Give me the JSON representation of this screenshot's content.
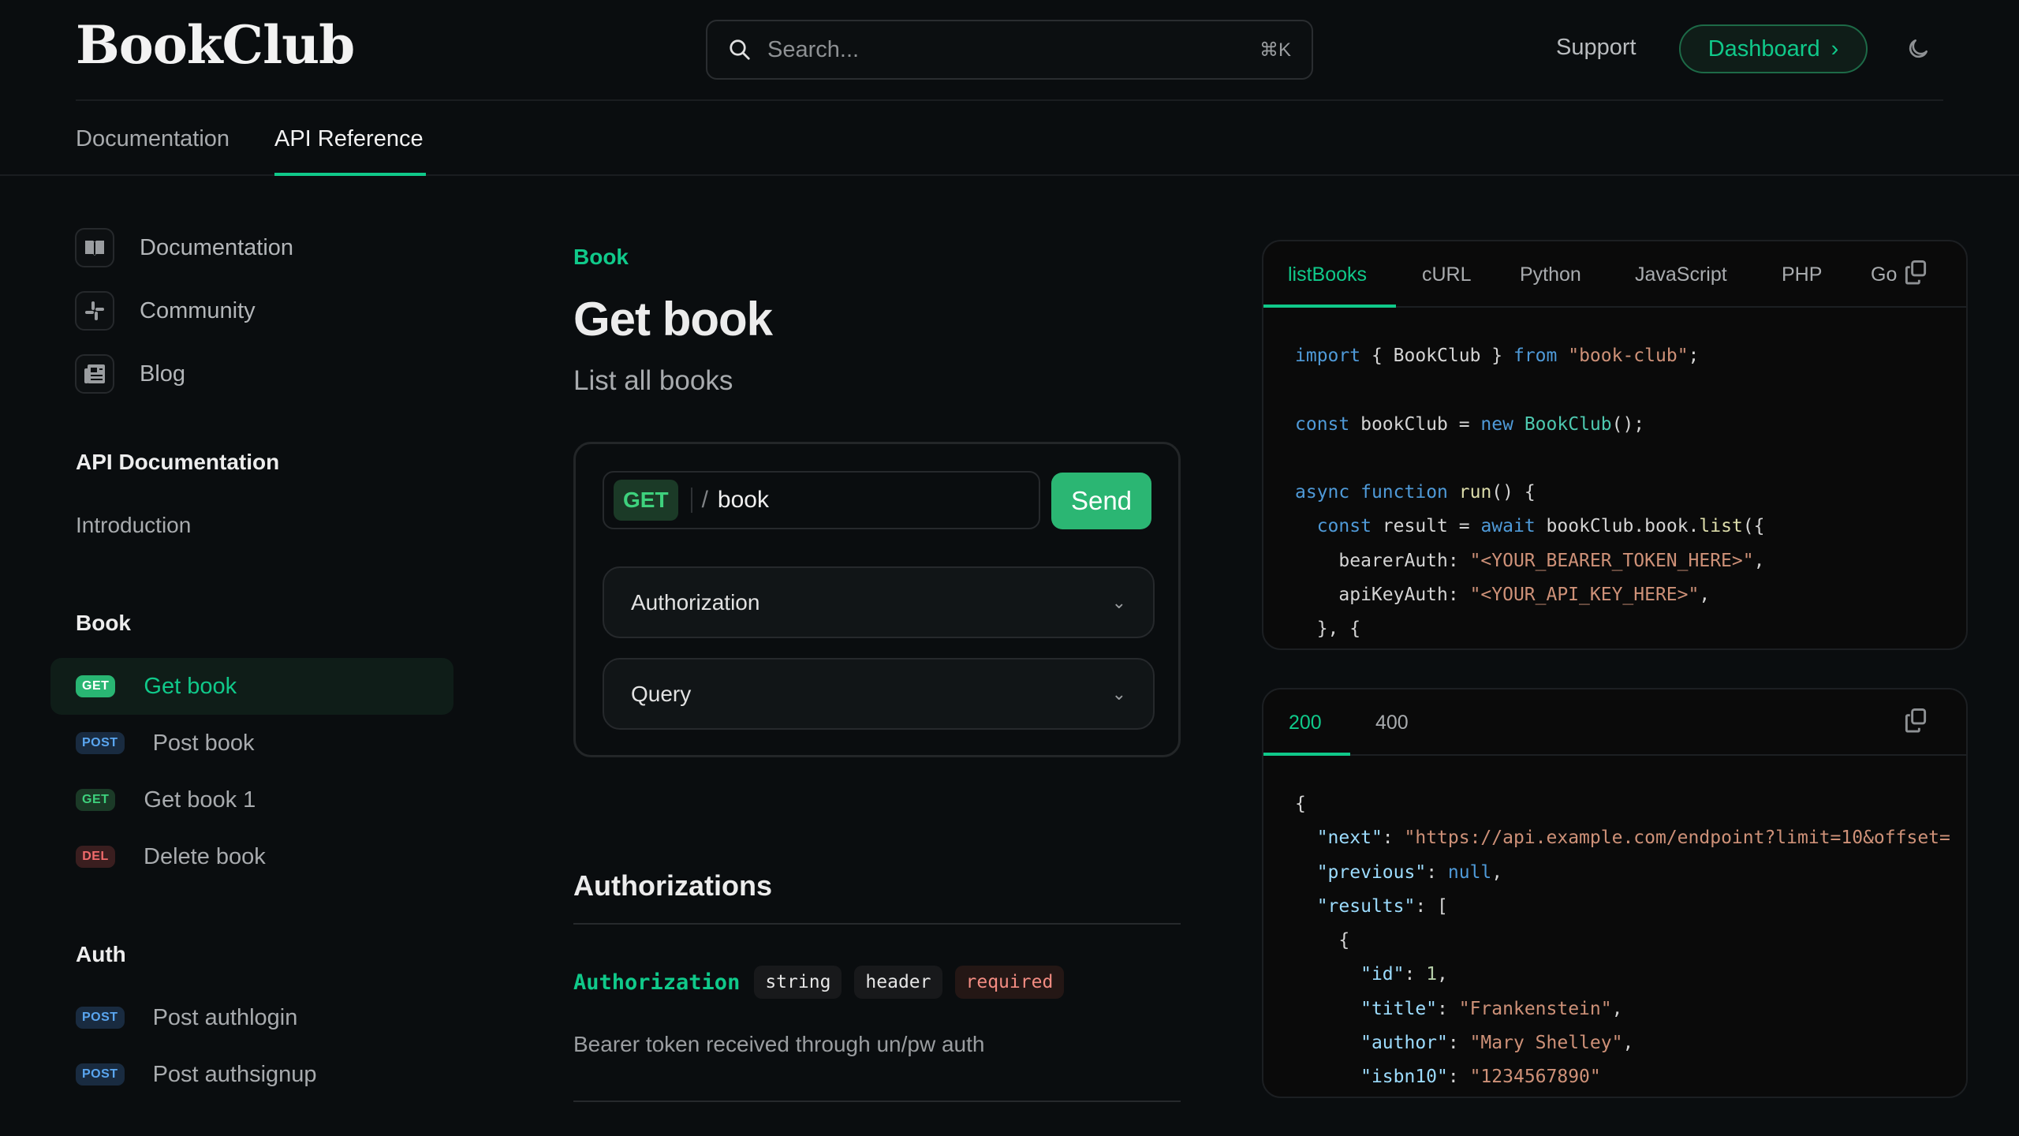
{
  "header": {
    "logo": "BookClub",
    "search_placeholder": "Search...",
    "search_shortcut": "⌘K",
    "support": "Support",
    "dashboard": "Dashboard",
    "dashboard_chevron": "›"
  },
  "top_tabs": [
    {
      "label": "Documentation"
    },
    {
      "label": "API Reference",
      "active": true
    }
  ],
  "sidebar": {
    "links": [
      {
        "label": "Documentation",
        "icon": "book-open-icon"
      },
      {
        "label": "Community",
        "icon": "slack-icon"
      },
      {
        "label": "Blog",
        "icon": "newspaper-icon"
      }
    ],
    "api_docs_heading": "API Documentation",
    "introduction": "Introduction",
    "book_heading": "Book",
    "book_items": [
      {
        "method": "GET",
        "label": "Get book",
        "active": true
      },
      {
        "method": "POST",
        "label": "Post book"
      },
      {
        "method": "GET",
        "label": "Get book 1"
      },
      {
        "method": "DEL",
        "label": "Delete book"
      }
    ],
    "auth_heading": "Auth",
    "auth_items": [
      {
        "method": "POST",
        "label": "Post authlogin"
      },
      {
        "method": "POST",
        "label": "Post authsignup"
      }
    ]
  },
  "main": {
    "breadcrumb": "Book",
    "title": "Get book",
    "subtitle": "List all books",
    "request": {
      "method": "GET",
      "slash": "/",
      "path": "book",
      "send": "Send",
      "sections": [
        "Authorization",
        "Query"
      ]
    },
    "authorizations_heading": "Authorizations",
    "field": {
      "name": "Authorization",
      "type": "string",
      "location": "header",
      "required": "required",
      "description": "Bearer token received through un/pw auth"
    }
  },
  "code_panel": {
    "tabs": [
      "listBooks",
      "cURL",
      "Python",
      "JavaScript",
      "PHP",
      "Go"
    ],
    "active_tab": "listBooks",
    "lines": [
      [
        [
          "import",
          "kw"
        ],
        [
          " { BookClub } ",
          "p"
        ],
        [
          "from",
          "kw"
        ],
        [
          " ",
          "p"
        ],
        [
          "\"book-club\"",
          "str"
        ],
        [
          ";",
          "p"
        ]
      ],
      [],
      [
        [
          "const",
          "kw"
        ],
        [
          " bookClub = ",
          "p"
        ],
        [
          "new",
          "kw"
        ],
        [
          " ",
          "p"
        ],
        [
          "BookClub",
          "cls"
        ],
        [
          "();",
          "p"
        ]
      ],
      [],
      [
        [
          "async",
          "kw"
        ],
        [
          " ",
          "p"
        ],
        [
          "function",
          "kw"
        ],
        [
          " ",
          "p"
        ],
        [
          "run",
          "fn"
        ],
        [
          "() {",
          "p"
        ]
      ],
      [
        [
          "  ",
          "p"
        ],
        [
          "const",
          "kw"
        ],
        [
          " result = ",
          "p"
        ],
        [
          "await",
          "kw"
        ],
        [
          " bookClub.book.",
          "p"
        ],
        [
          "list",
          "fn"
        ],
        [
          "({",
          "p"
        ]
      ],
      [
        [
          "    bearerAuth: ",
          "p"
        ],
        [
          "\"<YOUR_BEARER_TOKEN_HERE>\"",
          "str"
        ],
        [
          ",",
          "p"
        ]
      ],
      [
        [
          "    apiKeyAuth: ",
          "p"
        ],
        [
          "\"<YOUR_API_KEY_HERE>\"",
          "str"
        ],
        [
          ",",
          "p"
        ]
      ],
      [
        [
          "  }, {",
          "p"
        ]
      ]
    ]
  },
  "response_panel": {
    "tabs": [
      "200",
      "400"
    ],
    "active_tab": "200",
    "lines": [
      [
        [
          "{",
          "p"
        ]
      ],
      [
        [
          "  ",
          "p"
        ],
        [
          "\"next\"",
          "key"
        ],
        [
          ": ",
          "p"
        ],
        [
          "\"https://api.example.com/endpoint?limit=10&offset=",
          "str"
        ]
      ],
      [
        [
          "  ",
          "p"
        ],
        [
          "\"previous\"",
          "key"
        ],
        [
          ": ",
          "p"
        ],
        [
          "null",
          "kw"
        ],
        [
          ",",
          "p"
        ]
      ],
      [
        [
          "  ",
          "p"
        ],
        [
          "\"results\"",
          "key"
        ],
        [
          ": [",
          "p"
        ]
      ],
      [
        [
          "    {",
          "p"
        ]
      ],
      [
        [
          "      ",
          "p"
        ],
        [
          "\"id\"",
          "key"
        ],
        [
          ": ",
          "p"
        ],
        [
          "1",
          "num"
        ],
        [
          ",",
          "p"
        ]
      ],
      [
        [
          "      ",
          "p"
        ],
        [
          "\"title\"",
          "key"
        ],
        [
          ": ",
          "p"
        ],
        [
          "\"Frankenstein\"",
          "str"
        ],
        [
          ",",
          "p"
        ]
      ],
      [
        [
          "      ",
          "p"
        ],
        [
          "\"author\"",
          "key"
        ],
        [
          ": ",
          "p"
        ],
        [
          "\"Mary Shelley\"",
          "str"
        ],
        [
          ",",
          "p"
        ]
      ],
      [
        [
          "      ",
          "p"
        ],
        [
          "\"isbn10\"",
          "key"
        ],
        [
          ": ",
          "p"
        ],
        [
          "\"1234567890\"",
          "str"
        ]
      ]
    ]
  },
  "colors": {
    "accent": "#10c98a",
    "send": "#2bb673",
    "background": "#0a0d0f"
  }
}
